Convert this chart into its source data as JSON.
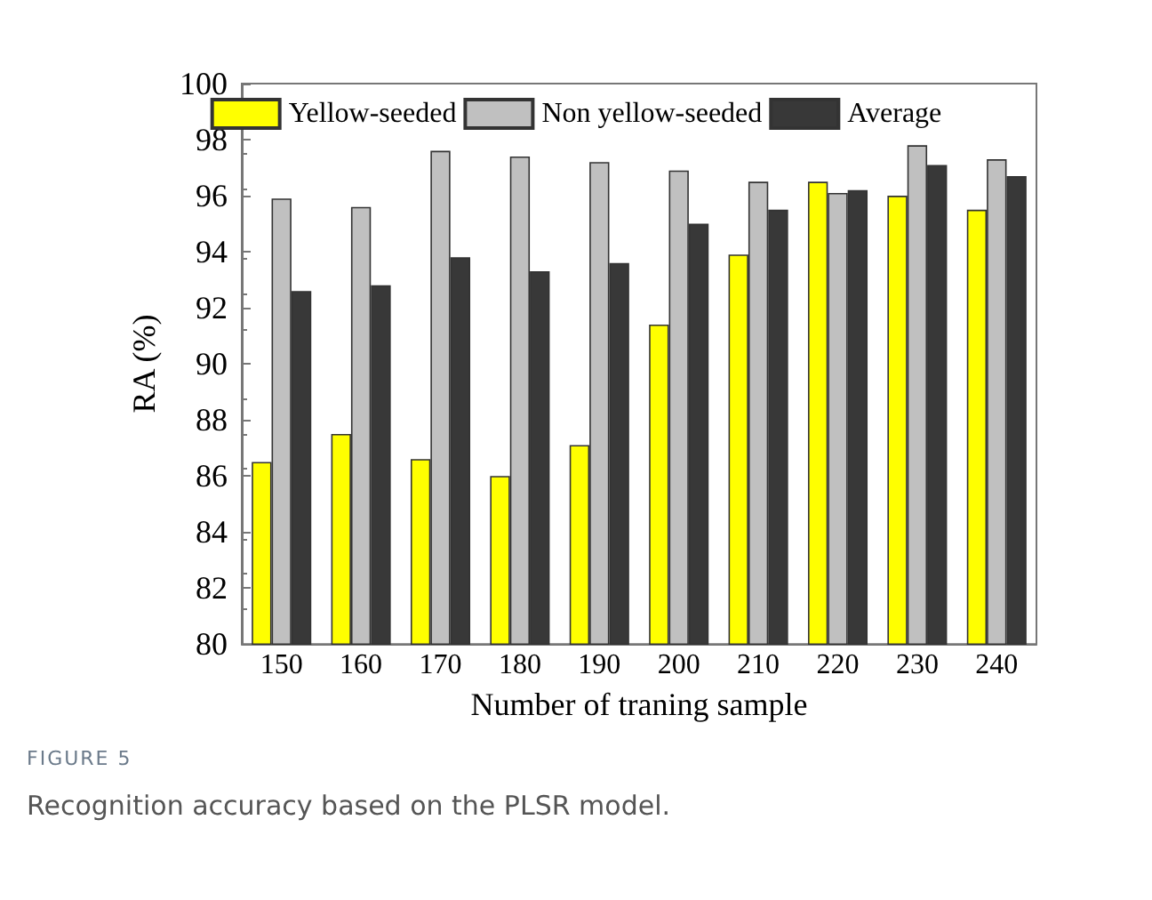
{
  "chart_data": {
    "type": "bar",
    "xlabel": "Number of traning sample",
    "ylabel": "RA (%)",
    "categories": [
      "150",
      "160",
      "170",
      "180",
      "190",
      "200",
      "210",
      "220",
      "230",
      "240"
    ],
    "series": [
      {
        "name": "Yellow-seeded",
        "color": "#ffff00",
        "values": [
          86.5,
          87.5,
          86.6,
          86.0,
          87.1,
          91.4,
          93.9,
          96.5,
          96.0,
          95.5
        ]
      },
      {
        "name": "Non yellow-seeded",
        "color": "#c0c0c0",
        "values": [
          95.9,
          95.6,
          97.6,
          97.4,
          97.2,
          96.9,
          96.5,
          96.1,
          97.8,
          97.3
        ]
      },
      {
        "name": "Average",
        "color": "#383838",
        "values": [
          92.6,
          92.8,
          93.8,
          93.3,
          93.6,
          95.0,
          95.5,
          96.2,
          97.1,
          96.7
        ]
      }
    ],
    "ylim": [
      80,
      100
    ],
    "yticks": [
      80,
      82,
      84,
      86,
      88,
      90,
      92,
      94,
      96,
      98,
      100
    ],
    "grid": false,
    "legend": "top",
    "annotations": [
      "FIGURE 5",
      "Recognition accuracy based on the PLSR model."
    ]
  }
}
